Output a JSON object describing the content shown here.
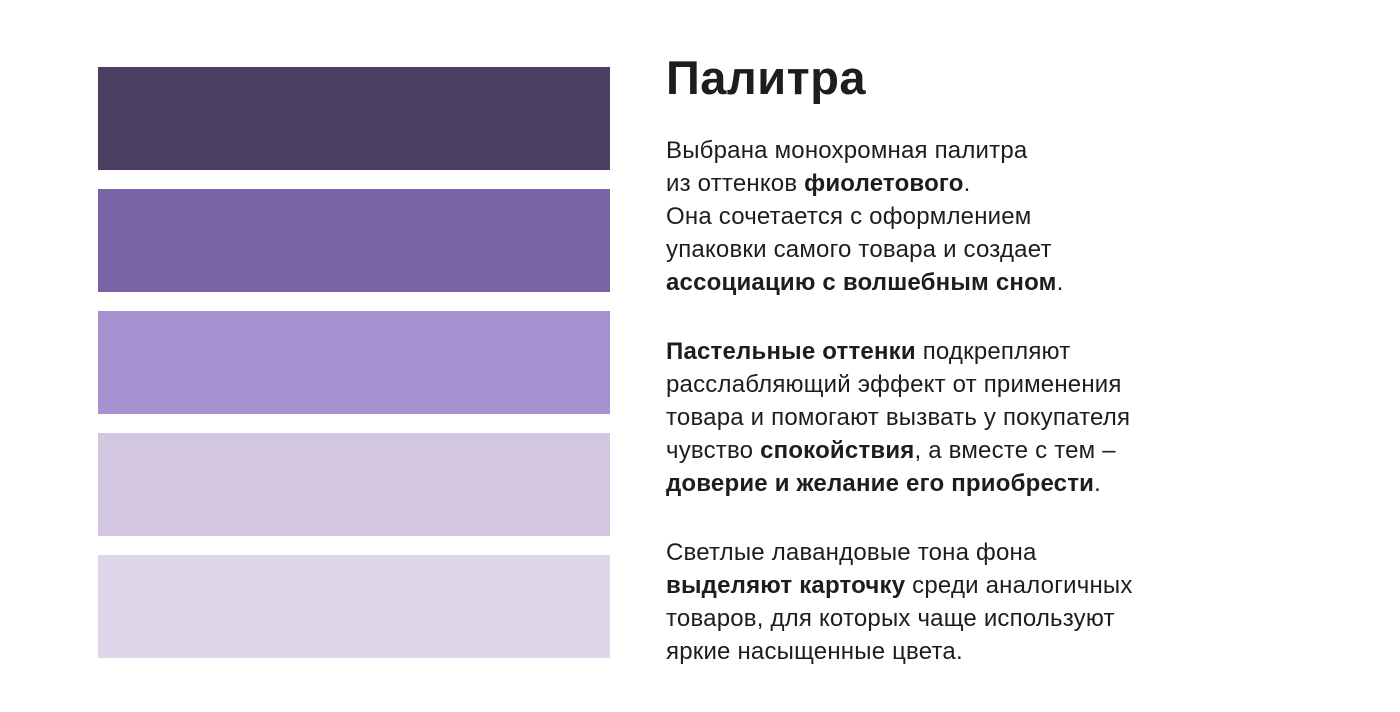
{
  "page": {
    "background": "#ffffff",
    "text_color": "#1d1d1d"
  },
  "title": "Палитра",
  "palette": {
    "swatches": [
      {
        "name": "dark-violet",
        "hex": "#4a3f63"
      },
      {
        "name": "medium-violet",
        "hex": "#7b64a5"
      },
      {
        "name": "lavender",
        "hex": "#a791d0"
      },
      {
        "name": "pale-lilac",
        "hex": "#d3c7e2"
      },
      {
        "name": "lightest-lavender",
        "hex": "#ded7ea"
      }
    ]
  },
  "paragraphs": [
    {
      "lines": [
        [
          {
            "t": "Выбрана монохромная палитра"
          }
        ],
        [
          {
            "t": "из оттенков "
          },
          {
            "t": "фиолетового",
            "b": true
          },
          {
            "t": "."
          }
        ],
        [
          {
            "t": "Она сочетается с оформлением"
          }
        ],
        [
          {
            "t": "упаковки самого товара и создает"
          }
        ],
        [
          {
            "t": "ассоциацию с волшебным сном",
            "b": true
          },
          {
            "t": "."
          }
        ]
      ]
    },
    {
      "lines": [
        [
          {
            "t": "Пастельные оттенки",
            "b": true
          },
          {
            "t": " подкрепляют"
          }
        ],
        [
          {
            "t": "расслабляющий эффект от применения"
          }
        ],
        [
          {
            "t": "товара и помогают вызвать у покупателя"
          }
        ],
        [
          {
            "t": "чувство "
          },
          {
            "t": "спокойствия",
            "b": true
          },
          {
            "t": ", а вместе с тем –"
          }
        ],
        [
          {
            "t": "доверие и желание его приобрести",
            "b": true
          },
          {
            "t": "."
          }
        ]
      ]
    },
    {
      "lines": [
        [
          {
            "t": "Светлые лавандовые тона фона"
          }
        ],
        [
          {
            "t": "выделяют карточку",
            "b": true
          },
          {
            "t": " среди аналогичных"
          }
        ],
        [
          {
            "t": "товаров, для которых чаще используют"
          }
        ],
        [
          {
            "t": "яркие насыщенные цвета."
          }
        ]
      ]
    }
  ]
}
